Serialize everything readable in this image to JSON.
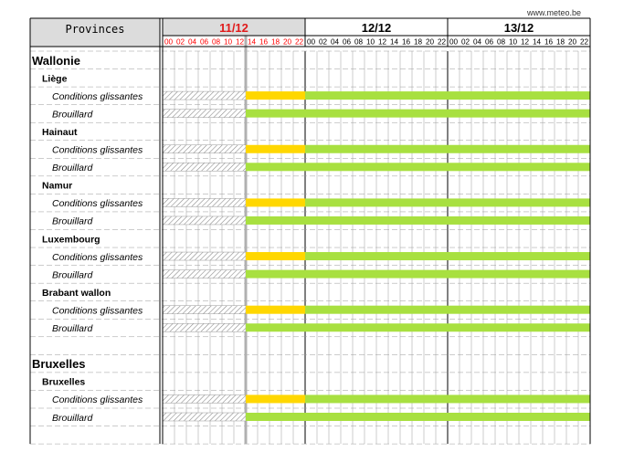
{
  "source": "www.meteo.be",
  "header": {
    "title": "Provinces"
  },
  "colors": {
    "current_day": "#e01b1b",
    "hours_current_day": "#ff0000",
    "yellow_level": "#ffd700",
    "green_level": "#a8e040",
    "hatch": "#8c8c8c",
    "grid": "#9a9a9a",
    "header_bg": "#dcdcdc",
    "current_time_line": "#b0b0b0"
  },
  "chart_data": {
    "type": "timeline",
    "days": [
      {
        "label": "11/12",
        "current": true
      },
      {
        "label": "12/12",
        "current": false
      },
      {
        "label": "13/12",
        "current": false
      }
    ],
    "hour_labels": [
      "00",
      "02",
      "04",
      "06",
      "08",
      "10",
      "12",
      "14",
      "16",
      "18",
      "20",
      "22"
    ],
    "current_time_hour": 14,
    "rows": [
      {
        "kind": "region",
        "label": "Wallonie"
      },
      {
        "kind": "province",
        "label": "Liège"
      },
      {
        "kind": "phenomenon",
        "label": "Conditions glissantes",
        "segments": [
          {
            "start": 14,
            "end": 24,
            "level": "yellow"
          },
          {
            "start": 24,
            "end": 72,
            "level": "green"
          }
        ]
      },
      {
        "kind": "phenomenon",
        "label": "Brouillard",
        "segments": [
          {
            "start": 14,
            "end": 72,
            "level": "green"
          }
        ]
      },
      {
        "kind": "province",
        "label": "Hainaut"
      },
      {
        "kind": "phenomenon",
        "label": "Conditions glissantes",
        "segments": [
          {
            "start": 14,
            "end": 24,
            "level": "yellow"
          },
          {
            "start": 24,
            "end": 72,
            "level": "green"
          }
        ]
      },
      {
        "kind": "phenomenon",
        "label": "Brouillard",
        "segments": [
          {
            "start": 14,
            "end": 72,
            "level": "green"
          }
        ]
      },
      {
        "kind": "province",
        "label": "Namur"
      },
      {
        "kind": "phenomenon",
        "label": "Conditions glissantes",
        "segments": [
          {
            "start": 14,
            "end": 24,
            "level": "yellow"
          },
          {
            "start": 24,
            "end": 72,
            "level": "green"
          }
        ]
      },
      {
        "kind": "phenomenon",
        "label": "Brouillard",
        "segments": [
          {
            "start": 14,
            "end": 72,
            "level": "green"
          }
        ]
      },
      {
        "kind": "province",
        "label": "Luxembourg"
      },
      {
        "kind": "phenomenon",
        "label": "Conditions glissantes",
        "segments": [
          {
            "start": 14,
            "end": 24,
            "level": "yellow"
          },
          {
            "start": 24,
            "end": 72,
            "level": "green"
          }
        ]
      },
      {
        "kind": "phenomenon",
        "label": "Brouillard",
        "segments": [
          {
            "start": 14,
            "end": 72,
            "level": "green"
          }
        ]
      },
      {
        "kind": "province",
        "label": "Brabant wallon"
      },
      {
        "kind": "phenomenon",
        "label": "Conditions glissantes",
        "segments": [
          {
            "start": 14,
            "end": 24,
            "level": "yellow"
          },
          {
            "start": 24,
            "end": 72,
            "level": "green"
          }
        ]
      },
      {
        "kind": "phenomenon",
        "label": "Brouillard",
        "segments": [
          {
            "start": 14,
            "end": 72,
            "level": "green"
          }
        ]
      },
      {
        "kind": "spacer",
        "label": ""
      },
      {
        "kind": "region",
        "label": "Bruxelles"
      },
      {
        "kind": "province",
        "label": "Bruxelles"
      },
      {
        "kind": "phenomenon",
        "label": "Conditions glissantes",
        "segments": [
          {
            "start": 14,
            "end": 24,
            "level": "yellow"
          },
          {
            "start": 24,
            "end": 72,
            "level": "green"
          }
        ]
      },
      {
        "kind": "phenomenon",
        "label": "Brouillard",
        "segments": [
          {
            "start": 14,
            "end": 72,
            "level": "green"
          }
        ]
      },
      {
        "kind": "spacer",
        "label": ""
      }
    ]
  }
}
